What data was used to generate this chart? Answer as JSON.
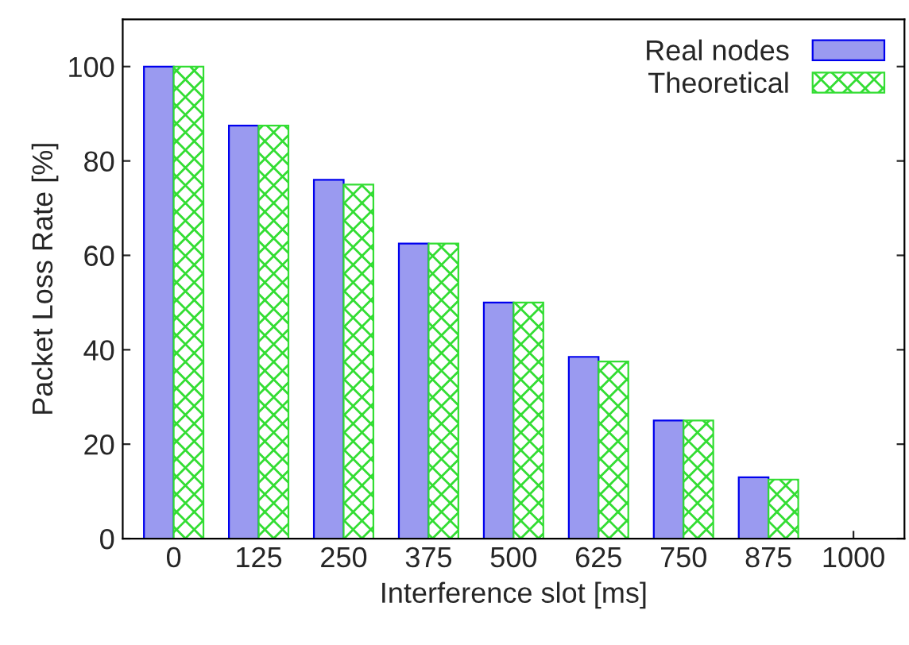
{
  "chart_data": {
    "type": "bar",
    "xlabel": "Interference slot [ms]",
    "ylabel": "Packet Loss Rate [%]",
    "categories": [
      "0",
      "125",
      "250",
      "375",
      "500",
      "625",
      "750",
      "875",
      "1000"
    ],
    "series": [
      {
        "name": "Real nodes",
        "color": "#9a9af0",
        "values": [
          100,
          87.5,
          76,
          62.5,
          50,
          38.5,
          25,
          13,
          0
        ]
      },
      {
        "name": "Theoretical",
        "color": "#33dd33",
        "values": [
          100,
          87.5,
          75,
          62.5,
          50,
          37.5,
          25,
          12.5,
          0
        ]
      }
    ],
    "ylim": [
      0,
      110
    ],
    "yticks": [
      0,
      20,
      40,
      60,
      80,
      100
    ],
    "legend": "top right",
    "grid": false
  }
}
